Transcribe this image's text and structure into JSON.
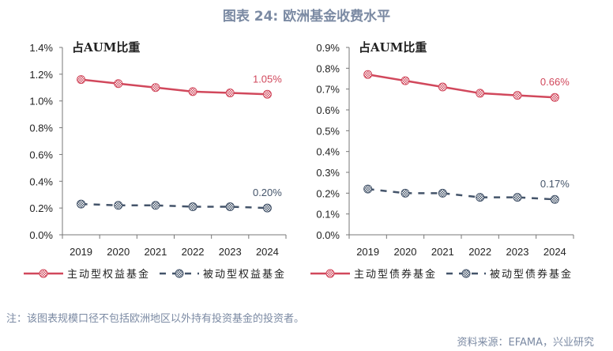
{
  "title": "图表 24: 欧洲基金收费水平",
  "note": "注：该图表规模口径不包括欧洲地区以外持有投资基金的投资者。",
  "source": "资料来源：EFAMA，兴业研究",
  "colors": {
    "active": "#d1485c",
    "passive": "#44546a",
    "title": "#7b8aa3"
  },
  "chart_data": [
    {
      "type": "line",
      "title": "占AUM比重",
      "categories": [
        "2019",
        "2020",
        "2021",
        "2022",
        "2023",
        "2024"
      ],
      "ylim": [
        0,
        1.4
      ],
      "yticks": [
        0,
        0.2,
        0.4,
        0.6,
        0.8,
        1.0,
        1.2,
        1.4
      ],
      "ytick_labels": [
        "0.0%",
        "0.2%",
        "0.4%",
        "0.6%",
        "0.8%",
        "1.0%",
        "1.2%",
        "1.4%"
      ],
      "series": [
        {
          "name": "主动型权益基金",
          "values": [
            1.16,
            1.13,
            1.1,
            1.07,
            1.06,
            1.05
          ],
          "style": "solid",
          "end_label": "1.05%"
        },
        {
          "name": "被动型权益基金",
          "values": [
            0.23,
            0.22,
            0.22,
            0.21,
            0.21,
            0.2
          ],
          "style": "dashed",
          "end_label": "0.20%"
        }
      ],
      "legend": "bottom"
    },
    {
      "type": "line",
      "title": "占AUM比重",
      "categories": [
        "2019",
        "2020",
        "2021",
        "2022",
        "2023",
        "2024"
      ],
      "ylim": [
        0,
        0.9
      ],
      "yticks": [
        0,
        0.1,
        0.2,
        0.3,
        0.4,
        0.5,
        0.6,
        0.7,
        0.8,
        0.9
      ],
      "ytick_labels": [
        "0.0%",
        "0.1%",
        "0.2%",
        "0.3%",
        "0.4%",
        "0.5%",
        "0.6%",
        "0.7%",
        "0.8%",
        "0.9%"
      ],
      "series": [
        {
          "name": "主动型债券基金",
          "values": [
            0.77,
            0.74,
            0.71,
            0.68,
            0.67,
            0.66
          ],
          "style": "solid",
          "end_label": "0.66%"
        },
        {
          "name": "被动型债券基金",
          "values": [
            0.22,
            0.2,
            0.2,
            0.18,
            0.18,
            0.17
          ],
          "style": "dashed",
          "end_label": "0.17%"
        }
      ],
      "legend": "bottom"
    }
  ]
}
